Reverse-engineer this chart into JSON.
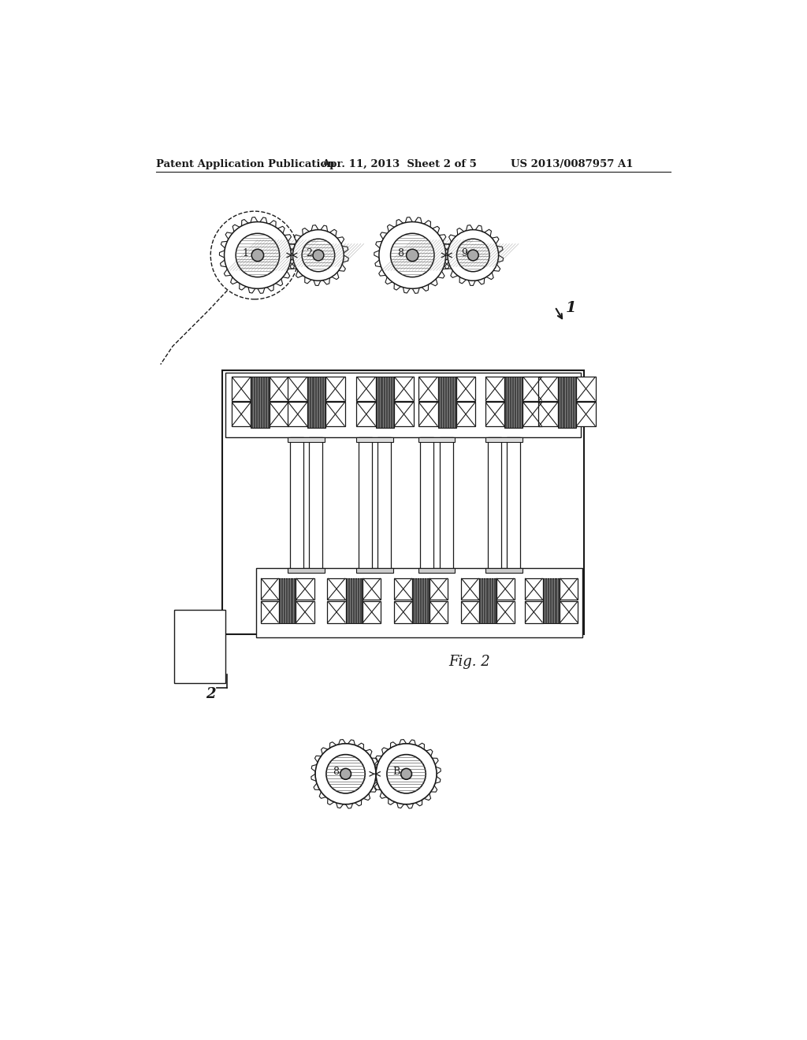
{
  "bg_color": "#ffffff",
  "header_left": "Patent Application Publication",
  "header_mid": "Apr. 11, 2013  Sheet 2 of 5",
  "header_right": "US 2013/0087957 A1",
  "fig_label": "Fig. 2",
  "label_1": "1",
  "label_2": "2"
}
